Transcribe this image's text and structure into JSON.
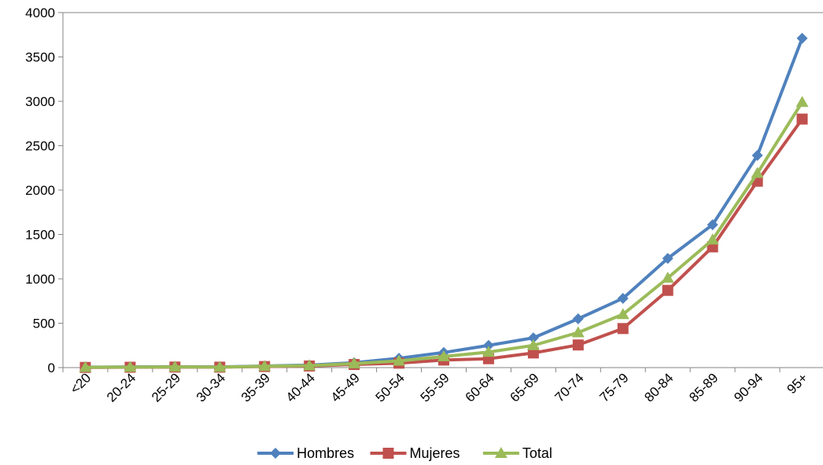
{
  "chart_data": {
    "type": "line",
    "categories": [
      "<20",
      "20-24",
      "25-29",
      "30-34",
      "35-39",
      "40-44",
      "45-49",
      "50-54",
      "55-59",
      "60-64",
      "65-69",
      "70-74",
      "75-79",
      "80-84",
      "85-89",
      "90-94",
      "95+"
    ],
    "series": [
      {
        "name": "Hombres",
        "color": "#4F81BD",
        "marker": "diamond",
        "values": [
          5,
          8,
          10,
          8,
          18,
          28,
          55,
          105,
          170,
          250,
          335,
          550,
          780,
          1230,
          1610,
          2390,
          3710
        ]
      },
      {
        "name": "Mujeres",
        "color": "#C0504D",
        "marker": "square",
        "values": [
          2,
          4,
          6,
          5,
          12,
          18,
          35,
          50,
          85,
          100,
          165,
          255,
          440,
          870,
          1360,
          2100,
          2800
        ]
      },
      {
        "name": "Total",
        "color": "#9BBB59",
        "marker": "triangle",
        "values": [
          3,
          6,
          8,
          6,
          15,
          22,
          45,
          75,
          125,
          175,
          250,
          395,
          600,
          1010,
          1440,
          2190,
          2990
        ]
      }
    ],
    "y_ticks": [
      "0",
      "500",
      "1000",
      "1500",
      "2000",
      "2500",
      "3000",
      "3500",
      "4000"
    ],
    "ylim": [
      0,
      4000
    ],
    "title": "",
    "xlabel": "",
    "ylabel": "",
    "grid": false,
    "legend_position": "bottom"
  }
}
